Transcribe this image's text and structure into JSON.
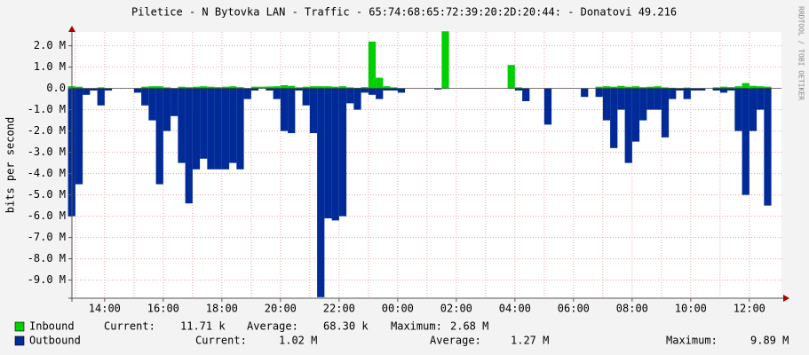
{
  "chart_data": {
    "type": "bar",
    "title": "Piletice - N Bytovka LAN - Traffic - 65:74:68:65:72:39:20:2D:20:44: - Donatovi 49.216",
    "y_label": "bits per second",
    "credit": "RRDTOOL / TOBI OETIKER",
    "x": [
      "13:00",
      "13:15",
      "13:30",
      "13:45",
      "14:00",
      "14:15",
      "14:30",
      "14:45",
      "15:00",
      "15:15",
      "15:30",
      "15:45",
      "16:00",
      "16:15",
      "16:30",
      "16:45",
      "17:00",
      "17:15",
      "17:30",
      "17:45",
      "18:00",
      "18:15",
      "18:30",
      "18:45",
      "19:00",
      "19:15",
      "19:30",
      "19:45",
      "20:00",
      "20:15",
      "20:30",
      "20:45",
      "21:00",
      "21:15",
      "21:30",
      "21:45",
      "22:00",
      "22:15",
      "22:30",
      "22:45",
      "23:00",
      "23:15",
      "23:30",
      "23:45",
      "00:00",
      "00:15",
      "00:30",
      "00:45",
      "01:00",
      "01:15",
      "01:30",
      "01:45",
      "02:00",
      "02:15",
      "02:30",
      "02:45",
      "03:00",
      "03:15",
      "03:30",
      "03:45",
      "04:00",
      "04:15",
      "04:30",
      "04:45",
      "05:00",
      "05:15",
      "05:30",
      "05:45",
      "06:00",
      "06:15",
      "06:30",
      "06:45",
      "07:00",
      "07:15",
      "07:30",
      "07:45",
      "08:00",
      "08:15",
      "08:30",
      "08:45",
      "09:00",
      "09:15",
      "09:30",
      "09:45",
      "10:00",
      "10:15",
      "10:30",
      "10:45",
      "11:00",
      "11:15",
      "11:30",
      "11:45",
      "12:00",
      "12:15",
      "12:30",
      "12:45"
    ],
    "xticks": [
      "14:00",
      "16:00",
      "18:00",
      "20:00",
      "22:00",
      "00:00",
      "02:00",
      "04:00",
      "06:00",
      "08:00",
      "10:00",
      "12:00"
    ],
    "ylim": [
      -9850000,
      2650000
    ],
    "yticks": [
      {
        "value": 2000000,
        "label": "2.0 M"
      },
      {
        "value": 1000000,
        "label": "1.0 M"
      },
      {
        "value": 0,
        "label": "0.0"
      },
      {
        "value": -1000000,
        "label": "-1.0 M"
      },
      {
        "value": -2000000,
        "label": "-2.0 M"
      },
      {
        "value": -3000000,
        "label": "-3.0 M"
      },
      {
        "value": -4000000,
        "label": "-4.0 M"
      },
      {
        "value": -5000000,
        "label": "-5.0 M"
      },
      {
        "value": -6000000,
        "label": "-6.0 M"
      },
      {
        "value": -7000000,
        "label": "-7.0 M"
      },
      {
        "value": -8000000,
        "label": "-8.0 M"
      },
      {
        "value": -9000000,
        "label": "-9.0 M"
      }
    ],
    "grid": true,
    "series": [
      {
        "name": "Inbound",
        "color": "#00cf00",
        "stats": [
          {
            "label": "Current:",
            "text": "11.71 k"
          },
          {
            "label": "Average:",
            "text": "68.30 k"
          },
          {
            "label": "Maximum:",
            "text": "2.68 M"
          }
        ],
        "values": [
          100000,
          80000,
          0,
          0,
          50000,
          0,
          0,
          0,
          0,
          0,
          80000,
          100000,
          100000,
          50000,
          0,
          80000,
          60000,
          80000,
          100000,
          80000,
          60000,
          80000,
          100000,
          60000,
          0,
          80000,
          80000,
          90000,
          100000,
          150000,
          120000,
          50000,
          80000,
          100000,
          100000,
          100000,
          80000,
          100000,
          50000,
          30000,
          60000,
          2200000,
          500000,
          100000,
          50000,
          0,
          0,
          0,
          0,
          0,
          0,
          2680000,
          0,
          0,
          0,
          0,
          0,
          0,
          0,
          0,
          1100000,
          50000,
          0,
          0,
          0,
          0,
          0,
          0,
          0,
          0,
          0,
          0,
          80000,
          100000,
          80000,
          120000,
          80000,
          100000,
          60000,
          80000,
          100000,
          50000,
          30000,
          0,
          40000,
          0,
          0,
          0,
          50000,
          80000,
          60000,
          100000,
          250000,
          120000,
          100000,
          80000
        ]
      },
      {
        "name": "Outbound",
        "color": "#002a97",
        "stats": [
          {
            "label": "Current:",
            "text": "1.02 M"
          },
          {
            "label": "Average:",
            "text": "1.27 M"
          },
          {
            "label": "Maximum:",
            "text": "9.89 M"
          }
        ],
        "values": [
          -6000000,
          -4500000,
          -300000,
          -100000,
          -800000,
          -100000,
          0,
          0,
          0,
          -200000,
          -800000,
          -1500000,
          -4500000,
          -2000000,
          -1300000,
          -3500000,
          -5400000,
          -3800000,
          -3300000,
          -3800000,
          -3800000,
          -3800000,
          -3500000,
          -3800000,
          -500000,
          -100000,
          0,
          -100000,
          -500000,
          -2000000,
          -2100000,
          -100000,
          -800000,
          -2100000,
          -9800000,
          -6100000,
          -6200000,
          -6000000,
          -700000,
          -1000000,
          -200000,
          -300000,
          -500000,
          -100000,
          -100000,
          -200000,
          0,
          0,
          0,
          0,
          -50000,
          0,
          0,
          0,
          0,
          0,
          0,
          0,
          0,
          0,
          0,
          -100000,
          -600000,
          0,
          0,
          -1700000,
          0,
          0,
          0,
          0,
          -400000,
          0,
          -400000,
          -1500000,
          -2800000,
          -1000000,
          -3500000,
          -2500000,
          -1500000,
          -1000000,
          -1000000,
          -2300000,
          -500000,
          -100000,
          -500000,
          -100000,
          -100000,
          0,
          -100000,
          -200000,
          -100000,
          -2000000,
          -5000000,
          -2000000,
          -1000000,
          -5500000
        ]
      }
    ]
  }
}
